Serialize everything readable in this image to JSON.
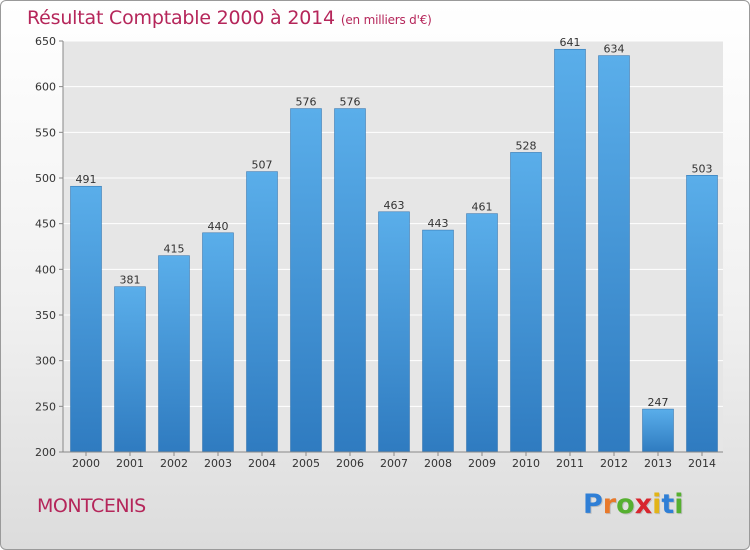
{
  "header": {
    "title": "Résultat Comptable 2000 à 2014",
    "subtitle": "(en milliers d'€)"
  },
  "place_name": "MONTCENIS",
  "logo": {
    "letters": [
      "P",
      "r",
      "o",
      "x",
      "i",
      "t",
      "i"
    ],
    "colors": [
      "#2f7fd6",
      "#e8792a",
      "#56b030",
      "#d8262e",
      "#e2b418",
      "#2f7fd6",
      "#56b030"
    ]
  },
  "colors": {
    "bar_light": "#5aaeea",
    "bar_dark": "#2f7bc0",
    "plot_bg": "#e6e6e6",
    "grid": "#ffffff",
    "accent": "#b5265a"
  },
  "chart_data": {
    "type": "bar",
    "title": "Résultat Comptable 2000 à 2014",
    "subtitle": "(en milliers d'€)",
    "xlabel": "",
    "ylabel": "",
    "categories": [
      "2000",
      "2001",
      "2002",
      "2003",
      "2004",
      "2005",
      "2006",
      "2007",
      "2008",
      "2009",
      "2010",
      "2011",
      "2012",
      "2013",
      "2014"
    ],
    "values": [
      491,
      381,
      415,
      440,
      507,
      576,
      576,
      463,
      443,
      461,
      528,
      641,
      634,
      247,
      503
    ],
    "ylim": [
      200,
      650
    ],
    "yticks": [
      200,
      250,
      300,
      350,
      400,
      450,
      500,
      550,
      600,
      650
    ],
    "grid": true,
    "legend": "none"
  }
}
